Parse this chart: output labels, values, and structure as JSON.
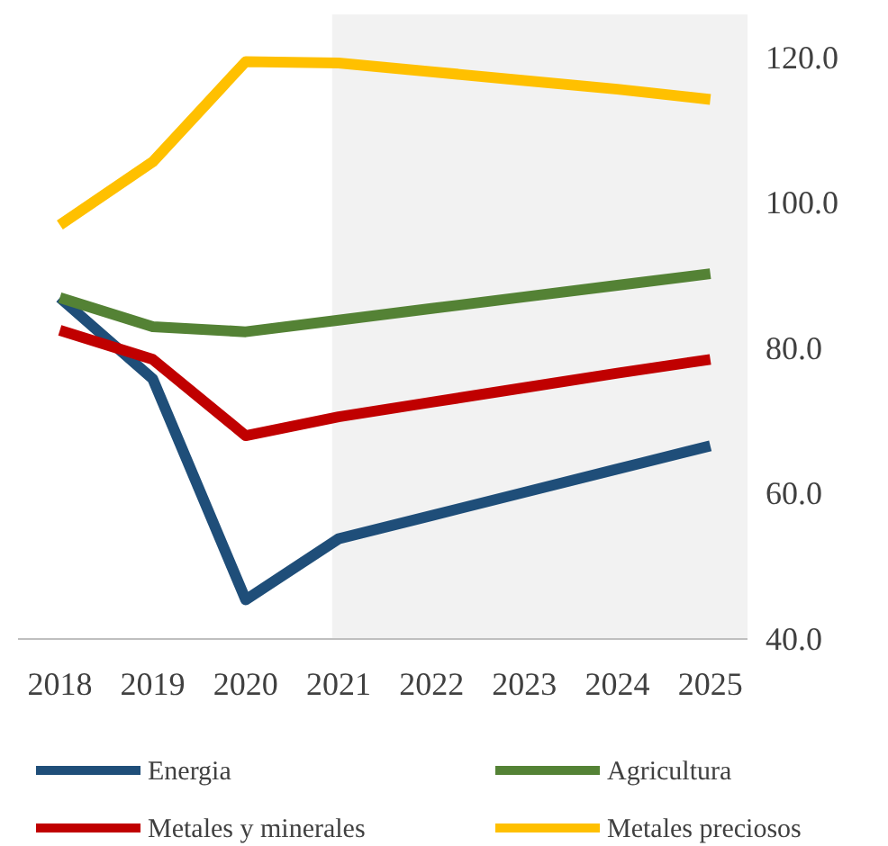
{
  "chart_data": {
    "type": "line",
    "x": [
      2018,
      2019,
      2020,
      2021,
      2022,
      2023,
      2024,
      2025
    ],
    "xlim": [
      2017.55,
      2025.4
    ],
    "xticks": [
      {
        "value": 2018,
        "label": "2018"
      },
      {
        "value": 2019,
        "label": "2019"
      },
      {
        "value": 2020,
        "label": "2020"
      },
      {
        "value": 2021,
        "label": "2021"
      },
      {
        "value": 2022,
        "label": "2022"
      },
      {
        "value": 2023,
        "label": "2023"
      },
      {
        "value": 2024,
        "label": "2024"
      },
      {
        "value": 2025,
        "label": "2025"
      }
    ],
    "ylim": [
      40,
      126
    ],
    "yticks": [
      {
        "value": 40,
        "label": "40.0"
      },
      {
        "value": 60,
        "label": "60.0"
      },
      {
        "value": 80,
        "label": "80.0"
      },
      {
        "value": 100,
        "label": "100.0"
      },
      {
        "value": 120,
        "label": "120.0"
      }
    ],
    "grid": false,
    "legend": "bottom",
    "line_style": "solid",
    "marker": "none",
    "bands": [
      {
        "axis": "x",
        "from": 2020.93,
        "to": 2025.4,
        "color": "#f2f2f2"
      }
    ],
    "series": [
      {
        "name": "Energia",
        "color": "#1f4e79",
        "values": [
          87,
          75.8,
          45.4,
          53.8,
          57,
          60.2,
          63.4,
          66.6
        ]
      },
      {
        "name": "Agricultura",
        "color": "#548235",
        "values": [
          87,
          83,
          82.3,
          83.9,
          85.5,
          87.1,
          88.7,
          90.3
        ]
      },
      {
        "name": "Metales y minerales",
        "color": "#c00000",
        "values": [
          82.5,
          78.5,
          68,
          70.6,
          72.6,
          74.6,
          76.6,
          78.5
        ]
      },
      {
        "name": "Metales preciosos",
        "color": "#ffc000",
        "values": [
          97,
          105.7,
          119.5,
          119.3,
          118.1,
          116.9,
          115.7,
          114.3
        ]
      }
    ]
  }
}
